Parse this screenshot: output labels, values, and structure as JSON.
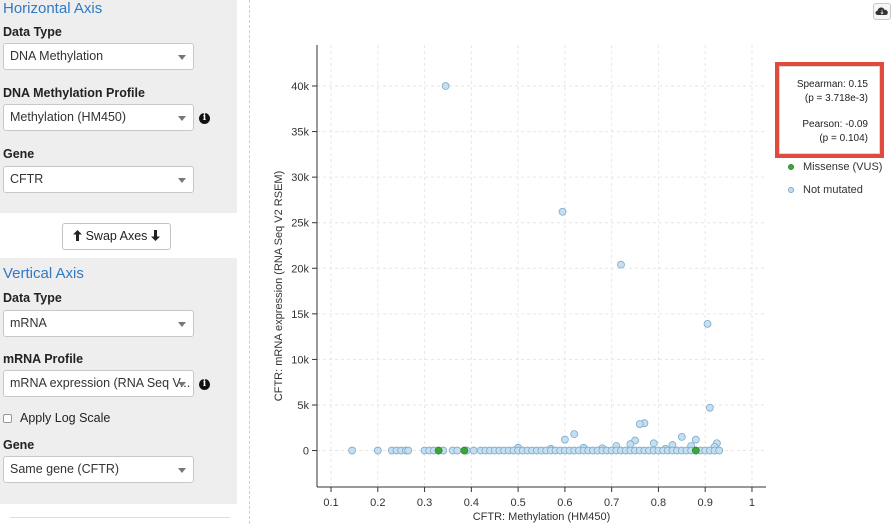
{
  "horizontal_axis": {
    "title": "Horizontal Axis",
    "data_type_label": "Data Type",
    "data_type_value": "DNA Methylation",
    "profile_label": "DNA Methylation Profile",
    "profile_value": "Methylation (HM450)",
    "gene_label": "Gene",
    "gene_value": "CFTR"
  },
  "swap_button": {
    "label": "Swap Axes"
  },
  "vertical_axis": {
    "title": "Vertical Axis",
    "data_type_label": "Data Type",
    "data_type_value": "mRNA",
    "profile_label": "mRNA Profile",
    "profile_value": "mRNA expression (RNA Seq V...",
    "log_scale_label": "Apply Log Scale",
    "log_scale_checked": false,
    "gene_label": "Gene",
    "gene_value": "Same gene (CFTR)"
  },
  "stats": {
    "spearman": "Spearman: 0.15",
    "spearman_p": "(p = 3.718e-3)",
    "pearson": "Pearson: -0.09",
    "pearson_p": "(p = 0.104)"
  },
  "legend": [
    {
      "label": "Missense (VUS)",
      "color": "#3ca53c"
    },
    {
      "label": "Not mutated",
      "color": "#c5dff0"
    }
  ],
  "colors": {
    "accent_blue": "#3079c4",
    "highlight_red": "#e04b3c",
    "point_fill": "#c5dff0",
    "point_stroke": "#7aa9c9",
    "missense": "#3ca53c"
  },
  "icons": {
    "info": "info-icon",
    "download": "cloud-download-icon",
    "swap_up": "arrow-up-icon",
    "swap_down": "arrow-down-icon",
    "select": "chevron-down-icon"
  },
  "chart_data": {
    "type": "scatter",
    "xlabel": "CFTR: Methylation (HM450)",
    "ylabel": "CFTR: mRNA expression (RNA Seq V2 RSEM)",
    "xlim": [
      0.07,
      1.03
    ],
    "ylim": [
      -4000,
      44500
    ],
    "x_ticks": [
      0.1,
      0.2,
      0.3,
      0.4,
      0.5,
      0.6,
      0.7,
      0.8,
      0.9,
      1
    ],
    "x_tick_labels": [
      "0.1",
      "0.2",
      "0.3",
      "0.4",
      "0.5",
      "0.6",
      "0.7",
      "0.8",
      "0.9",
      "1"
    ],
    "y_ticks": [
      0,
      5000,
      10000,
      15000,
      20000,
      25000,
      30000,
      35000,
      40000
    ],
    "y_tick_labels": [
      "0",
      "5k",
      "10k",
      "15k",
      "20k",
      "25k",
      "30k",
      "35k",
      "40k"
    ],
    "grid": true,
    "series": [
      {
        "name": "Not mutated",
        "points": [
          [
            0.345,
            40000
          ],
          [
            0.595,
            26200
          ],
          [
            0.72,
            20400
          ],
          [
            0.905,
            13900
          ],
          [
            0.91,
            4700
          ],
          [
            0.77,
            3000
          ],
          [
            0.76,
            2900
          ],
          [
            0.62,
            1800
          ],
          [
            0.85,
            1500
          ],
          [
            0.6,
            1200
          ],
          [
            0.88,
            1200
          ],
          [
            0.75,
            1100
          ],
          [
            0.74,
            700
          ],
          [
            0.83,
            600
          ],
          [
            0.79,
            800
          ],
          [
            0.87,
            500
          ],
          [
            0.925,
            800
          ],
          [
            0.92,
            400
          ],
          [
            0.64,
            300
          ],
          [
            0.68,
            250
          ],
          [
            0.57,
            200
          ],
          [
            0.5,
            300
          ],
          [
            0.815,
            200
          ],
          [
            0.71,
            500
          ],
          [
            0.145,
            0
          ],
          [
            0.2,
            0
          ],
          [
            0.23,
            0
          ],
          [
            0.24,
            0
          ],
          [
            0.25,
            0
          ],
          [
            0.26,
            0
          ],
          [
            0.265,
            0
          ],
          [
            0.3,
            0
          ],
          [
            0.31,
            0
          ],
          [
            0.32,
            0
          ],
          [
            0.34,
            0
          ],
          [
            0.36,
            0
          ],
          [
            0.37,
            0
          ],
          [
            0.39,
            0
          ],
          [
            0.405,
            0
          ],
          [
            0.42,
            0
          ],
          [
            0.43,
            0
          ],
          [
            0.44,
            0
          ],
          [
            0.45,
            0
          ],
          [
            0.46,
            0
          ],
          [
            0.47,
            0
          ],
          [
            0.48,
            0
          ],
          [
            0.49,
            0
          ],
          [
            0.5,
            0
          ],
          [
            0.51,
            0
          ],
          [
            0.52,
            0
          ],
          [
            0.53,
            0
          ],
          [
            0.54,
            0
          ],
          [
            0.55,
            0
          ],
          [
            0.56,
            0
          ],
          [
            0.57,
            0
          ],
          [
            0.58,
            0
          ],
          [
            0.59,
            0
          ],
          [
            0.6,
            0
          ],
          [
            0.61,
            0
          ],
          [
            0.62,
            0
          ],
          [
            0.63,
            0
          ],
          [
            0.64,
            0
          ],
          [
            0.65,
            0
          ],
          [
            0.66,
            0
          ],
          [
            0.67,
            0
          ],
          [
            0.68,
            0
          ],
          [
            0.69,
            0
          ],
          [
            0.7,
            0
          ],
          [
            0.71,
            0
          ],
          [
            0.72,
            0
          ],
          [
            0.73,
            0
          ],
          [
            0.74,
            0
          ],
          [
            0.75,
            0
          ],
          [
            0.76,
            0
          ],
          [
            0.77,
            0
          ],
          [
            0.78,
            0
          ],
          [
            0.79,
            0
          ],
          [
            0.8,
            0
          ],
          [
            0.81,
            0
          ],
          [
            0.82,
            0
          ],
          [
            0.83,
            0
          ],
          [
            0.84,
            0
          ],
          [
            0.85,
            0
          ],
          [
            0.86,
            0
          ],
          [
            0.87,
            0
          ],
          [
            0.89,
            0
          ],
          [
            0.9,
            0
          ],
          [
            0.91,
            0
          ],
          [
            0.92,
            0
          ],
          [
            0.93,
            0
          ]
        ]
      },
      {
        "name": "Missense (VUS)",
        "points": [
          [
            0.33,
            0
          ],
          [
            0.385,
            0
          ],
          [
            0.88,
            0
          ]
        ]
      }
    ]
  }
}
